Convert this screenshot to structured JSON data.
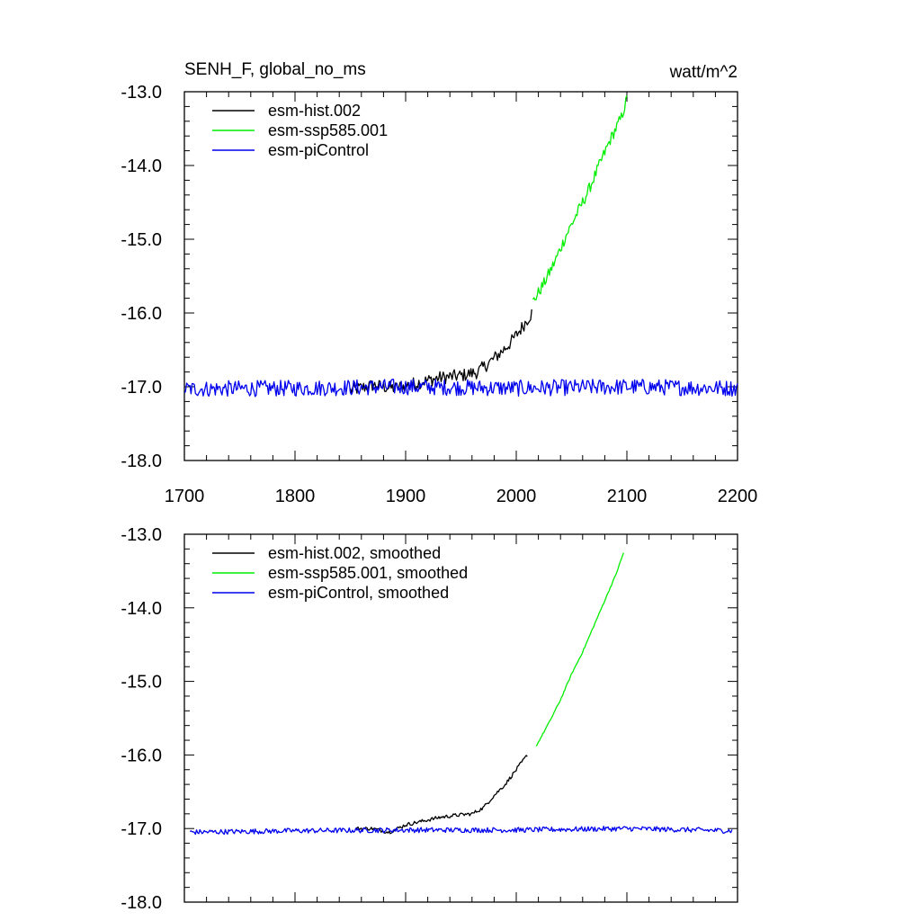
{
  "figure": {
    "title_left": "SENH_F, global_no_ms",
    "units": "watt/m^2"
  },
  "colors": {
    "hist": "#000000",
    "ssp": "#00ee00",
    "control": "#0000ee",
    "axis": "#000000"
  },
  "chart_data": [
    {
      "type": "line",
      "panel": "raw annual",
      "xlim": [
        1700,
        2200
      ],
      "ylim": [
        -18.0,
        -13.0
      ],
      "x_ticks": [
        1700,
        1800,
        1900,
        2000,
        2100,
        2200
      ],
      "y_ticks": [
        -18.0,
        -17.0,
        -16.0,
        -15.0,
        -14.0,
        -13.0
      ],
      "legend_position": "top-left",
      "series": [
        {
          "key": "hist",
          "name": "esm-hist.002",
          "x_range": [
            1850,
            2014
          ],
          "x": [
            1850,
            1870,
            1890,
            1910,
            1930,
            1950,
            1965,
            1975,
            1985,
            1995,
            2005,
            2014
          ],
          "y": [
            -17.05,
            -16.98,
            -17.02,
            -16.95,
            -16.88,
            -16.85,
            -16.8,
            -16.68,
            -16.55,
            -16.4,
            -16.2,
            -16.0
          ],
          "noise": 0.09
        },
        {
          "key": "ssp",
          "name": "esm-ssp585.001",
          "x_range": [
            2015,
            2100
          ],
          "x": [
            2015,
            2025,
            2035,
            2045,
            2055,
            2065,
            2075,
            2085,
            2095,
            2100
          ],
          "y": [
            -15.85,
            -15.6,
            -15.3,
            -14.95,
            -14.65,
            -14.35,
            -14.0,
            -13.65,
            -13.35,
            -13.1
          ],
          "noise": 0.08
        },
        {
          "key": "control",
          "name": "esm-piControl",
          "x_range": [
            1700,
            2200
          ],
          "x": [
            1700,
            1800,
            1900,
            2000,
            2100,
            2200
          ],
          "y": [
            -17.03,
            -17.02,
            -17.0,
            -17.02,
            -17.0,
            -17.02
          ],
          "noise": 0.11
        }
      ]
    },
    {
      "type": "line",
      "panel": "smoothed",
      "xlim": [
        1700,
        2200
      ],
      "ylim": [
        -18.0,
        -13.0
      ],
      "x_ticks": [
        1700,
        1800,
        1900,
        2000,
        2100,
        2200
      ],
      "y_ticks": [
        -18.0,
        -17.0,
        -16.0,
        -15.0,
        -14.0,
        -13.0
      ],
      "legend_position": "top-left",
      "series": [
        {
          "key": "hist",
          "name": "esm-hist.002, smoothed",
          "x_range": [
            1855,
            2010
          ],
          "x": [
            1855,
            1870,
            1885,
            1900,
            1915,
            1930,
            1945,
            1960,
            1970,
            1980,
            1990,
            2000,
            2010
          ],
          "y": [
            -17.0,
            -17.0,
            -17.05,
            -16.95,
            -16.9,
            -16.85,
            -16.82,
            -16.8,
            -16.72,
            -16.55,
            -16.4,
            -16.2,
            -16.0
          ],
          "noise": 0.025
        },
        {
          "key": "ssp",
          "name": "esm-ssp585.001, smoothed",
          "x_range": [
            2018,
            2097
          ],
          "x": [
            2018,
            2030,
            2040,
            2050,
            2060,
            2070,
            2080,
            2090,
            2097
          ],
          "y": [
            -15.88,
            -15.55,
            -15.25,
            -14.9,
            -14.6,
            -14.25,
            -13.9,
            -13.55,
            -13.25
          ],
          "noise": 0.01
        },
        {
          "key": "control",
          "name": "esm-piControl, smoothed",
          "x_range": [
            1705,
            2195
          ],
          "x": [
            1705,
            1800,
            1900,
            2000,
            2100,
            2195
          ],
          "y": [
            -17.05,
            -17.03,
            -17.02,
            -17.02,
            -17.0,
            -17.03
          ],
          "noise": 0.035
        }
      ]
    }
  ]
}
